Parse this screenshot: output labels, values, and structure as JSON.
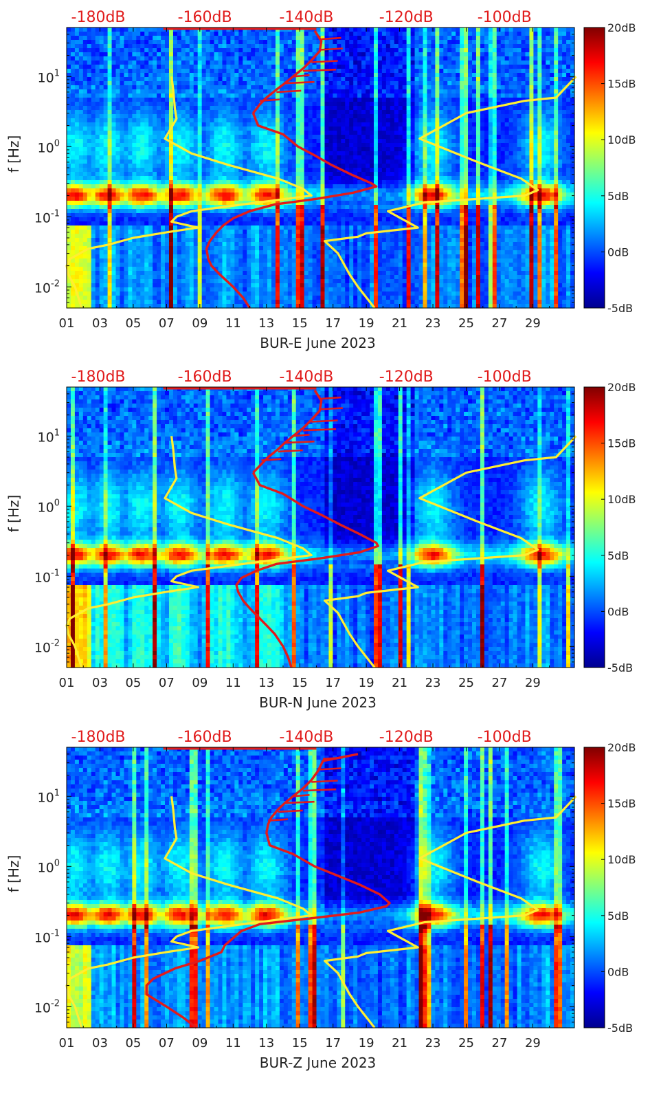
{
  "figure": {
    "panels": [
      {
        "xlabel": "BUR-E June 2023",
        "top_db_labels": [
          "-180dB",
          "-160dB",
          "-140dB",
          "-120dB",
          "-100dB"
        ],
        "red_curve_db": [
          [
            3.0,
            12.2
          ],
          [
            2.0,
            12.5
          ],
          [
            1.5,
            14.0
          ],
          [
            1.0,
            14.9
          ],
          [
            0.75,
            15.9
          ],
          [
            0.55,
            16.9
          ],
          [
            0.4,
            18.1
          ],
          [
            0.3,
            19.3
          ],
          [
            0.27,
            19.6
          ],
          [
            0.22,
            18.2
          ],
          [
            0.18,
            16.0
          ],
          [
            0.15,
            13.5
          ],
          [
            0.12,
            12.0
          ],
          [
            0.095,
            11.0
          ],
          [
            0.075,
            10.4
          ],
          [
            0.06,
            10.0
          ],
          [
            0.045,
            9.6
          ],
          [
            0.035,
            9.4
          ],
          [
            0.025,
            9.5
          ],
          [
            0.02,
            9.7
          ],
          [
            0.015,
            10.2
          ],
          [
            0.01,
            11.0
          ],
          [
            0.007,
            11.6
          ],
          [
            0.005,
            12.0
          ]
        ],
        "red_upper": [
          [
            3.0,
            12.2
          ],
          [
            4.0,
            12.6
          ],
          [
            5.0,
            13.0
          ],
          [
            6.5,
            13.6
          ],
          [
            8.0,
            14.1
          ],
          [
            10.0,
            14.6
          ],
          [
            13.0,
            15.2
          ],
          [
            17.0,
            15.7
          ],
          [
            23.0,
            16.2
          ],
          [
            32.0,
            16.3
          ],
          [
            45.0,
            15.9
          ]
        ]
      },
      {
        "xlabel": "BUR-N June 2023",
        "top_db_labels": [
          "-180dB",
          "-160dB",
          "-140dB",
          "-120dB",
          "-100dB"
        ],
        "red_curve_db": [
          [
            3.0,
            12.2
          ],
          [
            2.0,
            12.6
          ],
          [
            1.5,
            14.0
          ],
          [
            1.0,
            15.2
          ],
          [
            0.75,
            16.3
          ],
          [
            0.55,
            17.4
          ],
          [
            0.4,
            18.6
          ],
          [
            0.3,
            19.6
          ],
          [
            0.27,
            19.7
          ],
          [
            0.22,
            18.6
          ],
          [
            0.18,
            16.2
          ],
          [
            0.15,
            13.6
          ],
          [
            0.12,
            12.4
          ],
          [
            0.095,
            11.5
          ],
          [
            0.075,
            11.2
          ],
          [
            0.06,
            11.3
          ],
          [
            0.045,
            11.6
          ],
          [
            0.035,
            12.0
          ],
          [
            0.025,
            12.6
          ],
          [
            0.02,
            13.0
          ],
          [
            0.015,
            13.5
          ],
          [
            0.01,
            14.0
          ],
          [
            0.007,
            14.3
          ],
          [
            0.005,
            14.5
          ]
        ],
        "red_upper": [
          [
            3.0,
            12.2
          ],
          [
            4.0,
            12.7
          ],
          [
            5.0,
            13.1
          ],
          [
            6.5,
            13.7
          ],
          [
            8.0,
            14.1
          ],
          [
            10.0,
            14.6
          ],
          [
            13.0,
            15.2
          ],
          [
            17.0,
            15.7
          ],
          [
            23.0,
            16.2
          ],
          [
            32.0,
            16.3
          ],
          [
            45.0,
            15.9
          ]
        ]
      },
      {
        "xlabel": "BUR-Z June 2023",
        "top_db_labels": [
          "-180dB",
          "-160dB",
          "-140dB",
          "-120dB",
          "-100dB"
        ],
        "red_curve_db": [
          [
            3.0,
            13.0
          ],
          [
            2.0,
            13.2
          ],
          [
            1.5,
            14.6
          ],
          [
            1.0,
            15.9
          ],
          [
            0.75,
            17.2
          ],
          [
            0.55,
            18.6
          ],
          [
            0.4,
            19.8
          ],
          [
            0.3,
            20.4
          ],
          [
            0.27,
            20.2
          ],
          [
            0.22,
            18.6
          ],
          [
            0.18,
            15.5
          ],
          [
            0.15,
            12.6
          ],
          [
            0.12,
            11.5
          ],
          [
            0.095,
            11.0
          ],
          [
            0.075,
            10.5
          ],
          [
            0.06,
            10.3
          ],
          [
            0.045,
            9.0
          ],
          [
            0.035,
            7.5
          ],
          [
            0.025,
            6.2
          ],
          [
            0.02,
            5.8
          ],
          [
            0.015,
            5.8
          ],
          [
            0.01,
            7.0
          ],
          [
            0.007,
            8.0
          ],
          [
            0.005,
            8.8
          ]
        ],
        "red_upper": [
          [
            3.0,
            13.0
          ],
          [
            4.0,
            13.1
          ],
          [
            5.0,
            13.3
          ],
          [
            6.5,
            13.7
          ],
          [
            8.0,
            14.1
          ],
          [
            10.0,
            14.6
          ],
          [
            13.0,
            15.2
          ],
          [
            17.0,
            15.7
          ],
          [
            23.0,
            16.1
          ],
          [
            32.0,
            16.4
          ],
          [
            40.0,
            18.5
          ]
        ]
      }
    ]
  },
  "chart_data": [
    {
      "type": "heatmap",
      "xlabel": "BUR-E June 2023",
      "ylabel": "f [Hz]",
      "yscale": "log",
      "ylim": [
        0.005,
        50
      ],
      "xlim": [
        1,
        31.5
      ],
      "x_ticks": [
        "01",
        "03",
        "05",
        "07",
        "09",
        "11",
        "13",
        "15",
        "17",
        "19",
        "21",
        "23",
        "25",
        "27",
        "29"
      ],
      "y_ticks": [
        "10^-2",
        "10^-1",
        "10^0",
        "10^1"
      ],
      "colorbar_ticks": [
        "20dB",
        "15dB",
        "10dB",
        "5dB",
        "0dB",
        "-5dB"
      ],
      "colorbar_range": [
        -5,
        20
      ],
      "top_axis_ticks": [
        "-180dB",
        "-160dB",
        "-140dB",
        "-120dB",
        "-100dB"
      ]
    },
    {
      "type": "heatmap",
      "xlabel": "BUR-N June 2023",
      "ylabel": "f [Hz]",
      "yscale": "log",
      "ylim": [
        0.005,
        50
      ],
      "xlim": [
        1,
        31.5
      ],
      "x_ticks": [
        "01",
        "03",
        "05",
        "07",
        "09",
        "11",
        "13",
        "15",
        "17",
        "19",
        "21",
        "23",
        "25",
        "27",
        "29"
      ],
      "y_ticks": [
        "10^-2",
        "10^-1",
        "10^0",
        "10^1"
      ],
      "colorbar_ticks": [
        "20dB",
        "15dB",
        "10dB",
        "5dB",
        "0dB",
        "-5dB"
      ],
      "colorbar_range": [
        -5,
        20
      ],
      "top_axis_ticks": [
        "-180dB",
        "-160dB",
        "-140dB",
        "-120dB",
        "-100dB"
      ]
    },
    {
      "type": "heatmap",
      "xlabel": "BUR-Z June 2023",
      "ylabel": "f [Hz]",
      "yscale": "log",
      "ylim": [
        0.005,
        50
      ],
      "xlim": [
        1,
        31.5
      ],
      "x_ticks": [
        "01",
        "03",
        "05",
        "07",
        "09",
        "11",
        "13",
        "15",
        "17",
        "19",
        "21",
        "23",
        "25",
        "27",
        "29"
      ],
      "y_ticks": [
        "10^-2",
        "10^-1",
        "10^0",
        "10^1"
      ],
      "colorbar_ticks": [
        "20dB",
        "15dB",
        "10dB",
        "5dB",
        "0dB",
        "-5dB"
      ],
      "colorbar_range": [
        -5,
        20
      ],
      "top_axis_ticks": [
        "-180dB",
        "-160dB",
        "-140dB",
        "-120dB",
        "-100dB"
      ]
    }
  ],
  "noise_models": {
    "low_yellow": [
      [
        10,
        7.3
      ],
      [
        6.5,
        7.4
      ],
      [
        3.5,
        7.5
      ],
      [
        2.5,
        7.6
      ],
      [
        1.3,
        6.9
      ],
      [
        0.8,
        8.5
      ],
      [
        0.55,
        10.7
      ],
      [
        0.35,
        13.7
      ],
      [
        0.25,
        15.2
      ],
      [
        0.2,
        15.7
      ],
      [
        0.16,
        12.5
      ],
      [
        0.12,
        8.5
      ],
      [
        0.1,
        7.6
      ],
      [
        0.085,
        7.3
      ],
      [
        0.07,
        8.9
      ],
      [
        0.06,
        7.0
      ],
      [
        0.05,
        5.0
      ],
      [
        0.04,
        3.5
      ],
      [
        0.035,
        2.3
      ],
      [
        0.025,
        1.2
      ],
      [
        0.02,
        1.0
      ],
      [
        0.015,
        1.1
      ],
      [
        0.01,
        1.5
      ],
      [
        0.005,
        1.9
      ]
    ],
    "high_yellow": [
      [
        10,
        31.6
      ],
      [
        5,
        30.4
      ],
      [
        4.5,
        28.5
      ],
      [
        3,
        25.0
      ],
      [
        1.3,
        22.2
      ],
      [
        0.6,
        25.7
      ],
      [
        0.35,
        28.3
      ],
      [
        0.24,
        29.3
      ],
      [
        0.2,
        28.5
      ],
      [
        0.16,
        22.5
      ],
      [
        0.12,
        20.3
      ],
      [
        0.07,
        22.1
      ],
      [
        0.058,
        19.0
      ],
      [
        0.052,
        18.5
      ],
      [
        0.045,
        16.5
      ],
      [
        0.03,
        17.3
      ],
      [
        0.015,
        18.0
      ],
      [
        0.01,
        18.5
      ],
      [
        0.005,
        19.5
      ]
    ]
  },
  "colors": {
    "red_curve": "#e11b1b",
    "yellow_curve": "#ffee32",
    "top_label": "#e11b1b",
    "axis": "#000000"
  }
}
